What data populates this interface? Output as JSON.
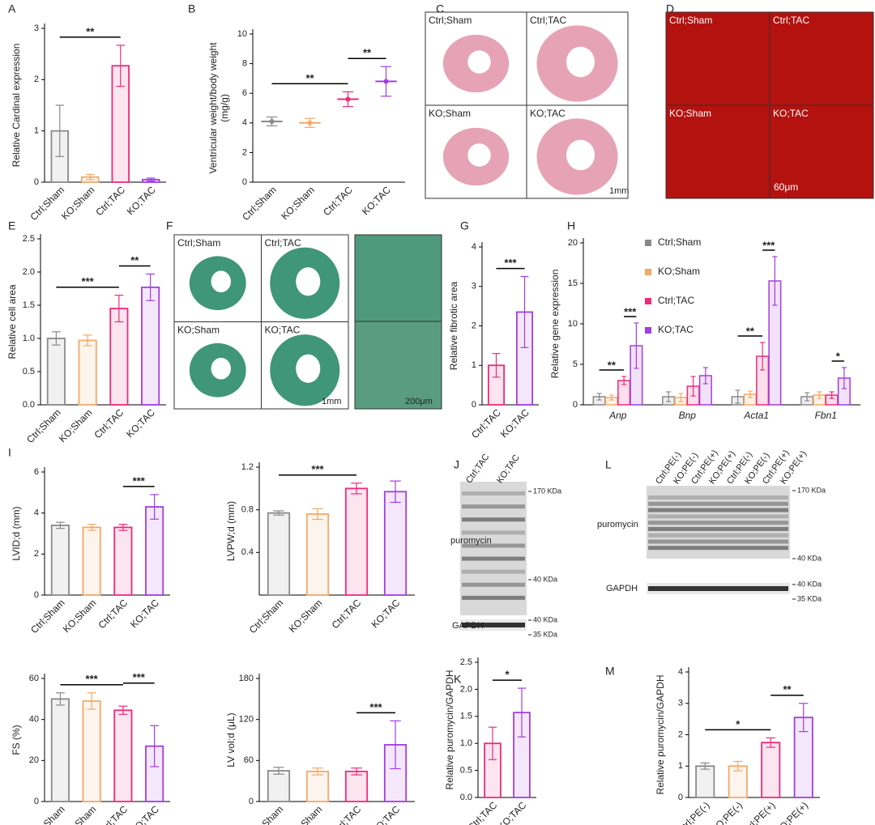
{
  "chart_data": [
    {
      "panel": "A",
      "type": "bar",
      "ylabel": "Relative Cardinal expression",
      "categories": [
        "Ctrl;Sham",
        "KO;Sham",
        "Ctrl;TAC",
        "KO;TAC"
      ],
      "values": [
        1.0,
        0.1,
        2.27,
        0.05
      ],
      "errors": [
        0.5,
        0.05,
        0.4,
        0.03
      ],
      "colors": [
        "#8a8a8a",
        "#f2a968",
        "#ee2a7b",
        "#a23de0"
      ],
      "ylim": [
        0,
        3
      ],
      "yticks": [
        0,
        1,
        2,
        3
      ],
      "annotations": [
        {
          "text": "**",
          "span": [
            "Ctrl;Sham",
            "Ctrl;TAC"
          ]
        }
      ]
    },
    {
      "panel": "B",
      "type": "dot",
      "ylabel": [
        "Ventricular weight/body weight",
        "(mg/g)"
      ],
      "categories": [
        "Ctrl;Sham",
        "KO;Sham",
        "Ctrl;TAC",
        "KO;TAC"
      ],
      "values": [
        4.1,
        4.0,
        5.6,
        6.8
      ],
      "errors": [
        0.3,
        0.3,
        0.5,
        1.0
      ],
      "colors": [
        "#8a8a8a",
        "#f2a968",
        "#ee2a7b",
        "#a23de0"
      ],
      "ylim": [
        0,
        10
      ],
      "yticks": [
        0,
        2,
        4,
        6,
        8,
        10
      ],
      "annotations": [
        {
          "text": "**",
          "span": [
            "Ctrl;Sham",
            "Ctrl;TAC"
          ]
        },
        {
          "text": "**",
          "span": [
            "Ctrl;TAC",
            "KO;TAC"
          ]
        }
      ]
    },
    {
      "panel": "E",
      "type": "bar",
      "ylabel": "Relative cell area",
      "categories": [
        "Ctrl;Sham",
        "KO;Sham",
        "Ctrl;TAC",
        "KO;TAC"
      ],
      "values": [
        1.0,
        0.97,
        1.45,
        1.77
      ],
      "errors": [
        0.1,
        0.08,
        0.2,
        0.2
      ],
      "colors": [
        "#8a8a8a",
        "#f2a968",
        "#ee2a7b",
        "#a23de0"
      ],
      "ylim": [
        0,
        2.5
      ],
      "yticks": [
        {
          "value": 0,
          "label": "0.0"
        },
        0.5,
        {
          "value": 1,
          "label": "1.0"
        },
        1.5,
        {
          "value": 2,
          "label": "2.0"
        },
        2.5
      ],
      "annotations": [
        {
          "text": "***",
          "span": [
            "Ctrl;Sham",
            "Ctrl;TAC"
          ]
        },
        {
          "text": "**",
          "span": [
            "Ctrl;TAC",
            "KO;TAC"
          ]
        }
      ]
    },
    {
      "panel": "G",
      "type": "bar",
      "ylabel": "Relative fibrotic area",
      "categories": [
        "Ctrl;TAC",
        "KO;TAC"
      ],
      "values": [
        1.0,
        2.35
      ],
      "errors": [
        0.3,
        0.9
      ],
      "colors": [
        "#ee2a7b",
        "#a23de0"
      ],
      "ylim": [
        0,
        4
      ],
      "yticks": [
        0,
        1,
        2,
        3,
        4
      ],
      "annotations": [
        {
          "text": "***",
          "span": [
            "Ctrl;TAC",
            "KO;TAC"
          ]
        }
      ]
    },
    {
      "panel": "H",
      "type": "grouped_bar",
      "ylabel": "Relative gene expression",
      "categories": [
        "Anp",
        "Bnp",
        "Acta1",
        "Fbn1"
      ],
      "series": [
        {
          "name": "Ctrl;Sham",
          "color": "#8a8a8a",
          "values": [
            1.0,
            1.0,
            1.0,
            1.0
          ],
          "errors": [
            0.4,
            0.6,
            0.8,
            0.5
          ]
        },
        {
          "name": "KO;Sham",
          "color": "#f2a968",
          "values": [
            0.9,
            0.9,
            1.3,
            1.2
          ],
          "errors": [
            0.3,
            0.5,
            0.4,
            0.4
          ]
        },
        {
          "name": "Ctrl;TAC",
          "color": "#ee2a7b",
          "values": [
            3.0,
            2.3,
            6.0,
            1.2
          ],
          "errors": [
            0.5,
            1.2,
            1.7,
            0.4
          ]
        },
        {
          "name": "KO;TAC",
          "color": "#a23de0",
          "values": [
            7.3,
            3.6,
            15.3,
            3.3
          ],
          "errors": [
            2.8,
            1.0,
            3.0,
            1.3
          ]
        }
      ],
      "ylim": [
        0,
        20
      ],
      "yticks": [
        0,
        5,
        10,
        15,
        20
      ],
      "legend": "top-left",
      "annotations": [
        {
          "text": "**",
          "category": "Anp",
          "span": [
            "Ctrl;Sham",
            "Ctrl;TAC"
          ]
        },
        {
          "text": "***",
          "category": "Anp",
          "span": [
            "Ctrl;TAC",
            "KO;TAC"
          ]
        },
        {
          "text": "**",
          "category": "Acta1",
          "span": [
            "Ctrl;Sham",
            "Ctrl;TAC"
          ]
        },
        {
          "text": "***",
          "category": "Acta1",
          "span": [
            "Ctrl;TAC",
            "KO;TAC"
          ]
        },
        {
          "text": "*",
          "category": "Fbn1",
          "span": [
            "Ctrl;TAC",
            "KO;TAC"
          ]
        }
      ]
    },
    {
      "panel": "I",
      "type": "bar",
      "ylabel": "LVID;d (mm)",
      "categories": [
        "Ctrl;Sham",
        "KO;Sham",
        "Ctrl;TAC",
        "KO;TAC"
      ],
      "values": [
        3.4,
        3.3,
        3.3,
        4.3
      ],
      "errors": [
        0.15,
        0.15,
        0.15,
        0.6
      ],
      "colors": [
        "#8a8a8a",
        "#f2a968",
        "#ee2a7b",
        "#a23de0"
      ],
      "ylim": [
        0,
        6
      ],
      "yticks": [
        0,
        2,
        4,
        6
      ],
      "annotations": [
        {
          "text": "***",
          "span": [
            "Ctrl;TAC",
            "KO;TAC"
          ]
        }
      ]
    },
    {
      "type": "bar",
      "ylabel": "LVPW;d (mm)",
      "categories": [
        "Ctrl;Sham",
        "KO;Sham",
        "Ctrl;TAC",
        "KO;TAC"
      ],
      "values": [
        0.77,
        0.76,
        1.0,
        0.97
      ],
      "errors": [
        0.02,
        0.05,
        0.05,
        0.1
      ],
      "colors": [
        "#8a8a8a",
        "#f2a968",
        "#ee2a7b",
        "#a23de0"
      ],
      "ylim": [
        0,
        1.2
      ],
      "yticks": [
        0.4,
        0.8,
        1.2
      ],
      "annotations": [
        {
          "text": "***",
          "span": [
            "Ctrl;Sham",
            "Ctrl;TAC"
          ]
        }
      ]
    },
    {
      "type": "bar",
      "ylabel": "FS (%)",
      "categories": [
        "Ctrl;Sham",
        "KO;Sham",
        "Ctrl;TAC",
        "KO;TAC"
      ],
      "values": [
        50,
        49,
        44.5,
        27
      ],
      "errors": [
        3,
        4,
        2,
        10
      ],
      "colors": [
        "#8a8a8a",
        "#f2a968",
        "#ee2a7b",
        "#a23de0"
      ],
      "ylim": [
        0,
        60
      ],
      "yticks": [
        0,
        20,
        40,
        60
      ],
      "annotations": [
        {
          "text": "***",
          "span": [
            "Ctrl;Sham",
            "Ctrl;TAC"
          ]
        },
        {
          "text": "***",
          "span": [
            "Ctrl;TAC",
            "KO;TAC"
          ]
        }
      ]
    },
    {
      "type": "bar",
      "ylabel": "LV vol;d (μL)",
      "categories": [
        "Ctrl;Sham",
        "KO;Sham",
        "Ctrl;TAC",
        "KO;TAC"
      ],
      "values": [
        45,
        44,
        44,
        83
      ],
      "errors": [
        5,
        5,
        5,
        35
      ],
      "colors": [
        "#8a8a8a",
        "#f2a968",
        "#ee2a7b",
        "#a23de0"
      ],
      "ylim": [
        0,
        180
      ],
      "yticks": [
        0,
        60,
        120,
        180
      ],
      "annotations": [
        {
          "text": "***",
          "span": [
            "Ctrl;TAC",
            "KO;TAC"
          ]
        }
      ]
    },
    {
      "panel": "K",
      "type": "bar",
      "ylabel": "Relative puromycin/GAPDH",
      "categories": [
        "Ctrl;TAC",
        "KO;TAC"
      ],
      "values": [
        1.0,
        1.57
      ],
      "errors": [
        0.3,
        0.45
      ],
      "colors": [
        "#ee2a7b",
        "#a23de0"
      ],
      "ylim": [
        0,
        2.5
      ],
      "yticks": [
        {
          "value": 0,
          "label": "0.0"
        },
        0.5,
        {
          "value": 1,
          "label": "1.0"
        },
        1.5,
        {
          "value": 2,
          "label": "2.0"
        },
        2.5
      ],
      "annotations": [
        {
          "text": "*",
          "span": [
            "Ctrl;TAC",
            "KO;TAC"
          ]
        }
      ]
    },
    {
      "panel": "M",
      "type": "bar",
      "ylabel": "Relative puromycin/GAPDH",
      "categories": [
        "Ctrl;PE(-)",
        "KO;PE(-)",
        "Ctrl;PE(+)",
        "KO;PE(+)"
      ],
      "values": [
        1.0,
        1.0,
        1.75,
        2.55
      ],
      "errors": [
        0.1,
        0.15,
        0.15,
        0.45
      ],
      "colors": [
        "#8a8a8a",
        "#f2a968",
        "#ee2a7b",
        "#a23de0"
      ],
      "ylim": [
        0,
        4
      ],
      "yticks": [
        0,
        1,
        2,
        3,
        4
      ],
      "annotations": [
        {
          "text": "*",
          "span": [
            "Ctrl;PE(-)",
            "Ctrl;PE(+)"
          ]
        },
        {
          "text": "**",
          "span": [
            "Ctrl;PE(+)",
            "KO;PE(+)"
          ]
        }
      ]
    }
  ],
  "image_panels": {
    "C": {
      "label": "C",
      "groups": [
        "Ctrl;Sham",
        "Ctrl;TAC",
        "KO;Sham",
        "KO;TAC"
      ],
      "scale": "1mm"
    },
    "D": {
      "label": "D",
      "groups": [
        "Ctrl;Sham",
        "Ctrl;TAC",
        "KO;Sham",
        "KO;TAC"
      ],
      "scale": "60μm"
    },
    "F": {
      "label": "F",
      "groups": [
        "Ctrl;Sham",
        "Ctrl;TAC",
        "KO;Sham",
        "KO;TAC"
      ],
      "scale": "1mm",
      "zoom_scale": "200μm"
    },
    "J": {
      "label": "J",
      "lanes": [
        "Ctrl;TAC",
        "KO;TAC"
      ],
      "blot": "puromycin",
      "loading": "GAPDH",
      "markers": [
        "170 KDa",
        "40 KDa",
        "40 KDa",
        "35 KDa"
      ]
    },
    "L": {
      "label": "L",
      "lanes": [
        "Ctrl;PE(-)",
        "KO;PE(-)",
        "Ctrl;PE(+)",
        "KO;PE(+)",
        "Ctrl;PE(-)",
        "KO;PE(-)",
        "Ctrl;PE(+)",
        "KO;PE(+)"
      ],
      "blot": "puromycin",
      "loading": "GAPDH",
      "markers": [
        "170 KDa",
        "40 KDa",
        "40 KDa",
        "35 KDa"
      ]
    }
  }
}
